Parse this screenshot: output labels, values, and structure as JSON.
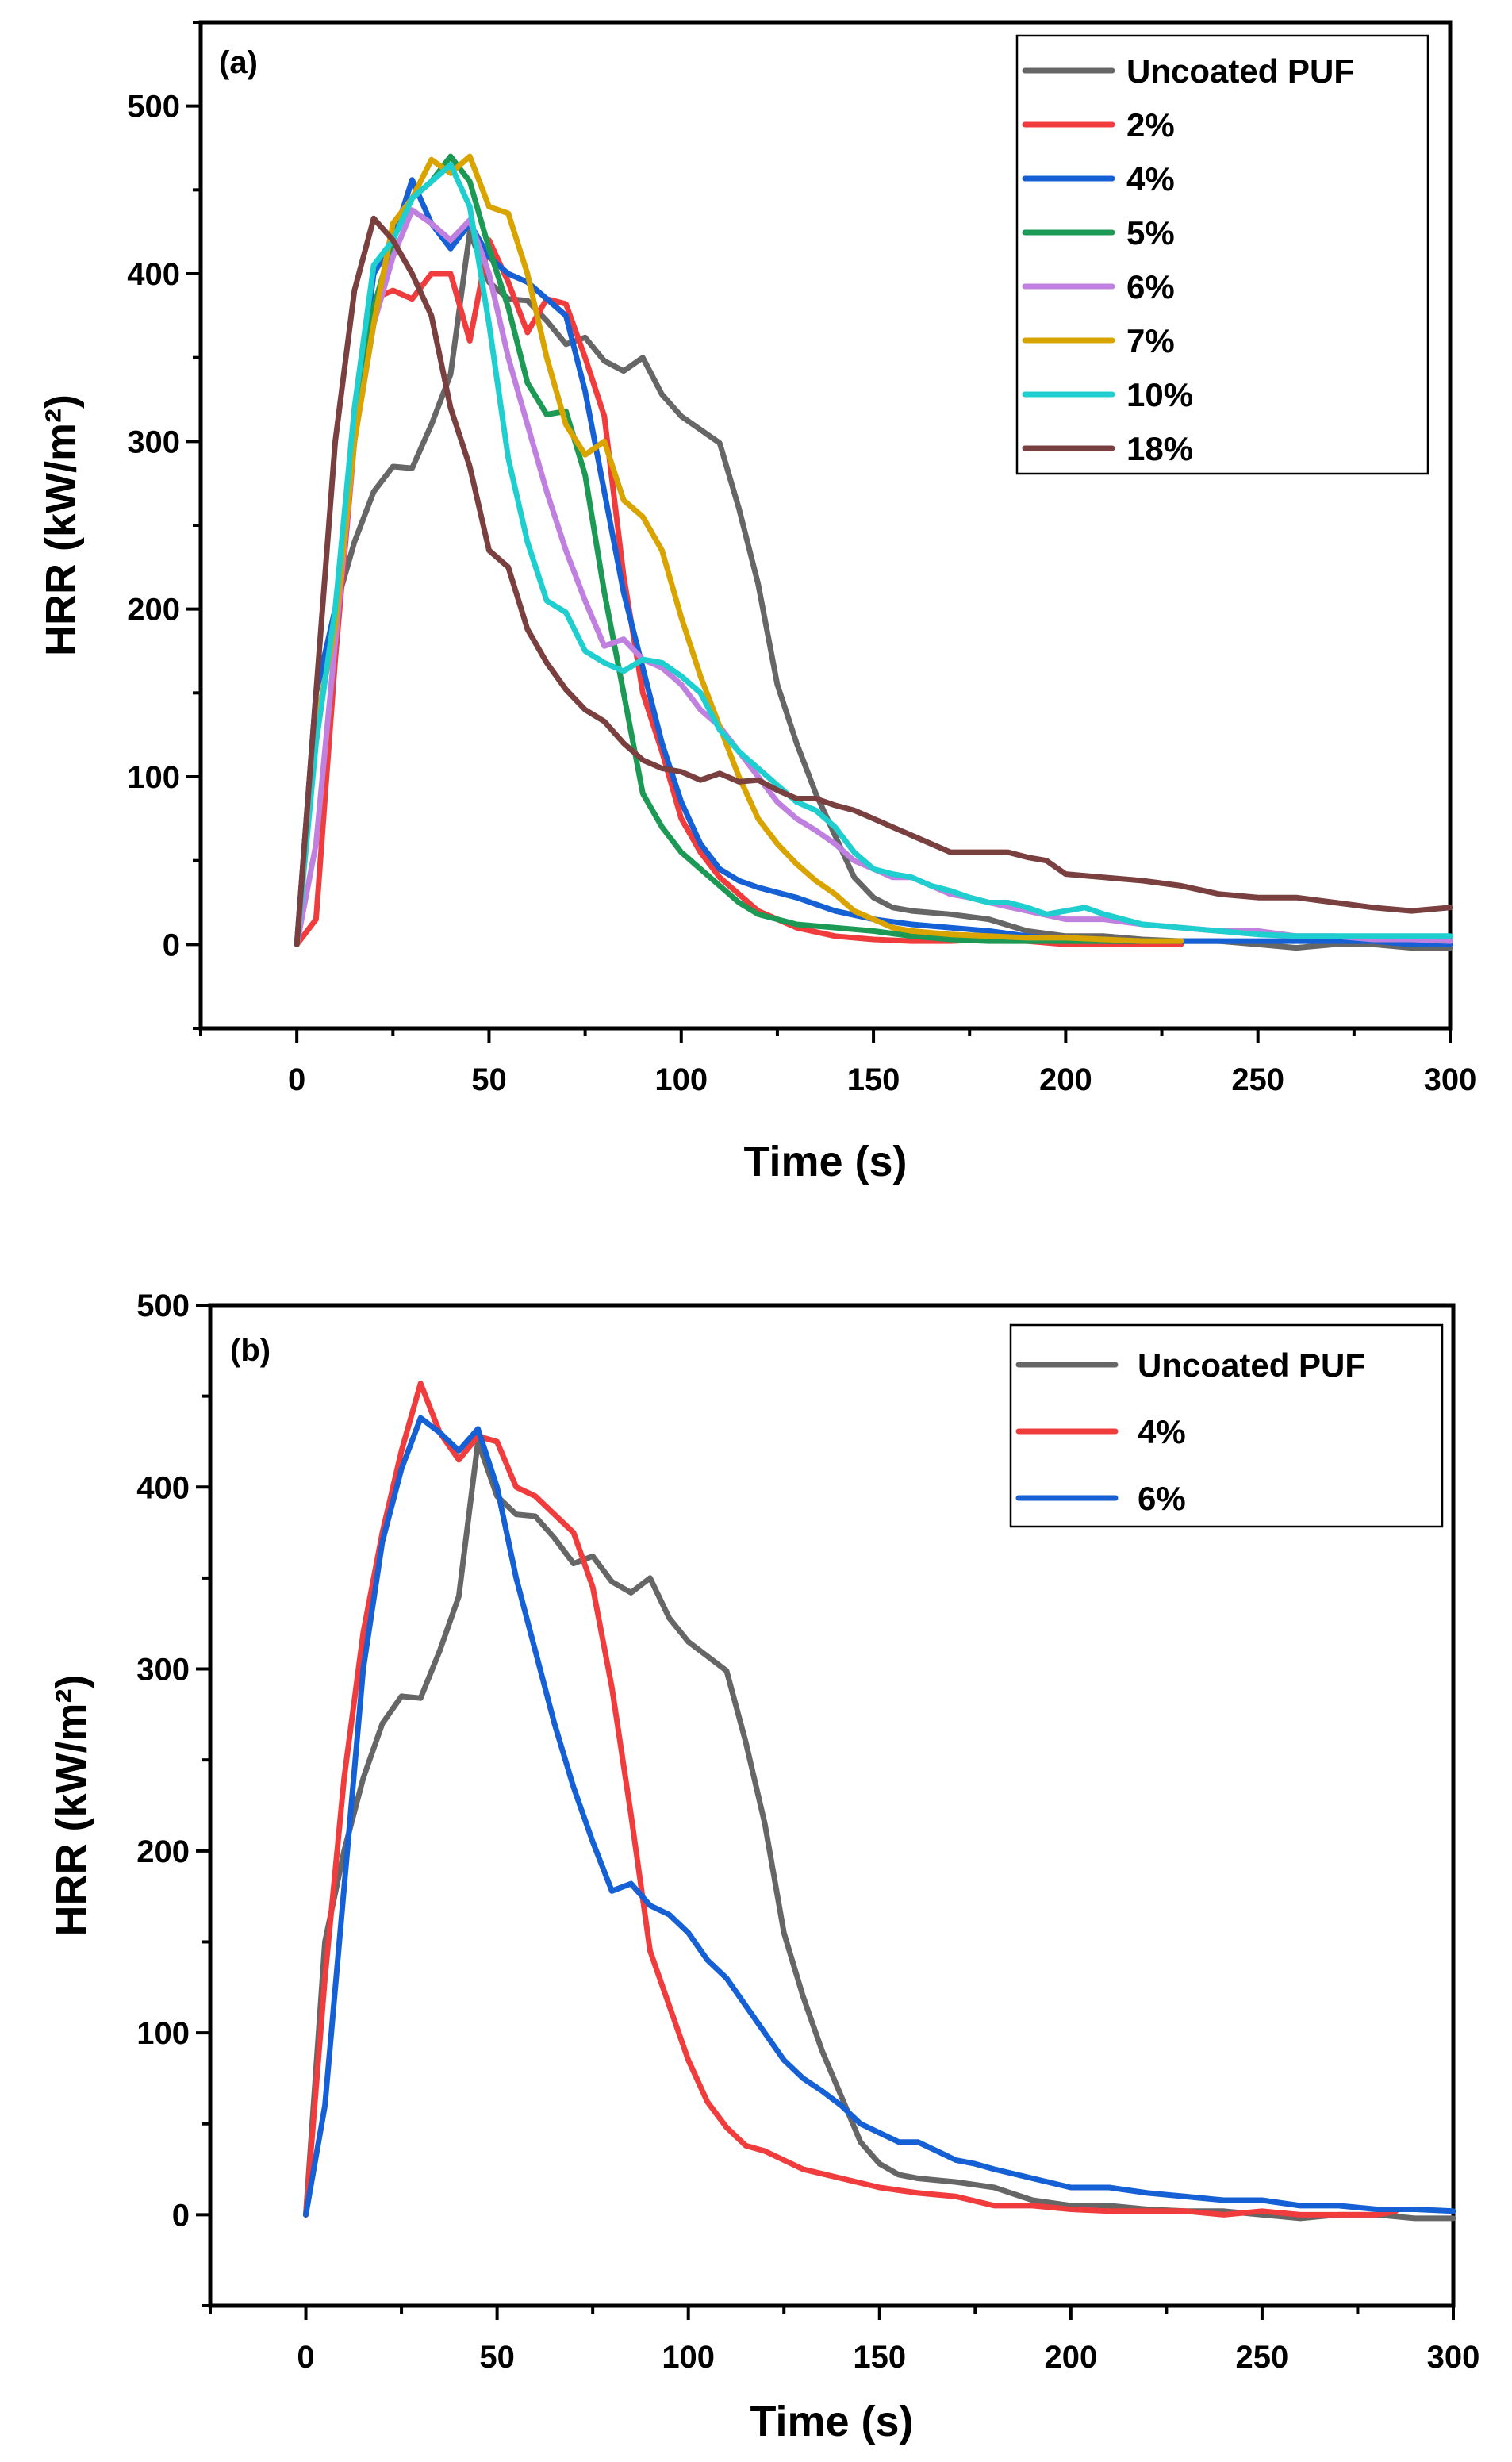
{
  "chart_data": [
    {
      "type": "line",
      "panel_label": "(a)",
      "xlabel": "Time (s)",
      "ylabel": "HRR (kW/m²)",
      "xlim": [
        -25,
        300
      ],
      "ylim": [
        -50,
        550
      ],
      "x_ticks": [
        0,
        50,
        100,
        150,
        200,
        250,
        300
      ],
      "y_ticks": [
        0,
        100,
        200,
        300,
        400,
        500
      ],
      "legend_position": "top-right",
      "series": [
        {
          "name": "Uncoated PUF",
          "color": "#666666",
          "x": [
            0,
            5,
            10,
            15,
            20,
            25,
            30,
            35,
            40,
            45,
            50,
            55,
            60,
            65,
            70,
            75,
            80,
            85,
            90,
            95,
            100,
            105,
            110,
            115,
            120,
            125,
            130,
            135,
            140,
            145,
            150,
            155,
            160,
            170,
            180,
            190,
            200,
            210,
            220,
            230,
            240,
            250,
            260,
            270,
            280,
            290,
            300
          ],
          "y": [
            0,
            150,
            200,
            240,
            270,
            285,
            284,
            310,
            340,
            425,
            395,
            385,
            384,
            372,
            358,
            362,
            348,
            342,
            350,
            328,
            315,
            307,
            299,
            260,
            215,
            155,
            120,
            90,
            65,
            40,
            28,
            22,
            20,
            18,
            15,
            8,
            5,
            5,
            3,
            2,
            2,
            0,
            -2,
            0,
            0,
            -2,
            -2
          ]
        },
        {
          "name": "2%",
          "color": "#f03c3c",
          "x": [
            0,
            5,
            10,
            15,
            20,
            25,
            30,
            35,
            40,
            45,
            50,
            55,
            60,
            65,
            70,
            75,
            80,
            85,
            90,
            95,
            100,
            105,
            110,
            120,
            130,
            140,
            150,
            160,
            170,
            180,
            190,
            200,
            210,
            220,
            230
          ],
          "y": [
            0,
            15,
            170,
            300,
            385,
            390,
            385,
            400,
            400,
            360,
            420,
            395,
            365,
            385,
            382,
            350,
            315,
            220,
            150,
            115,
            75,
            55,
            40,
            20,
            10,
            5,
            3,
            2,
            2,
            3,
            2,
            0,
            0,
            0,
            0
          ]
        },
        {
          "name": "4%",
          "color": "#1660d6",
          "x": [
            0,
            5,
            10,
            15,
            20,
            25,
            30,
            35,
            40,
            45,
            50,
            55,
            60,
            65,
            70,
            75,
            80,
            85,
            90,
            95,
            100,
            105,
            110,
            115,
            120,
            130,
            140,
            150,
            160,
            170,
            180,
            190,
            200,
            210,
            220,
            230,
            240,
            250,
            260,
            270,
            280,
            290,
            300
          ],
          "y": [
            0,
            150,
            200,
            310,
            400,
            420,
            456,
            430,
            415,
            430,
            410,
            400,
            395,
            385,
            375,
            330,
            270,
            210,
            165,
            120,
            85,
            60,
            45,
            38,
            34,
            28,
            20,
            15,
            12,
            10,
            8,
            5,
            3,
            2,
            2,
            2,
            2,
            2,
            2,
            2,
            2,
            0,
            0
          ]
        },
        {
          "name": "5%",
          "color": "#1c9a55",
          "x": [
            0,
            5,
            10,
            15,
            20,
            25,
            30,
            35,
            40,
            45,
            50,
            55,
            60,
            65,
            70,
            75,
            80,
            85,
            90,
            95,
            100,
            105,
            110,
            115,
            120,
            130,
            140,
            150,
            160,
            170,
            180,
            190,
            200,
            210,
            220,
            230
          ],
          "y": [
            0,
            130,
            190,
            300,
            380,
            420,
            445,
            455,
            470,
            455,
            415,
            380,
            335,
            316,
            318,
            280,
            210,
            150,
            90,
            70,
            55,
            45,
            35,
            25,
            18,
            12,
            10,
            8,
            5,
            3,
            2,
            2,
            2,
            2,
            2,
            2
          ]
        },
        {
          "name": "6%",
          "color": "#c080e0",
          "x": [
            0,
            5,
            10,
            15,
            20,
            25,
            30,
            35,
            40,
            45,
            50,
            55,
            60,
            65,
            70,
            75,
            80,
            85,
            90,
            95,
            100,
            105,
            110,
            115,
            120,
            125,
            130,
            135,
            140,
            145,
            150,
            155,
            160,
            165,
            170,
            175,
            180,
            190,
            200,
            210,
            220,
            230,
            240,
            250,
            260,
            270,
            280,
            290,
            300
          ],
          "y": [
            0,
            60,
            180,
            300,
            370,
            410,
            438,
            430,
            420,
            432,
            400,
            350,
            310,
            270,
            235,
            205,
            178,
            182,
            170,
            165,
            155,
            140,
            130,
            115,
            100,
            85,
            75,
            68,
            60,
            50,
            45,
            40,
            40,
            35,
            30,
            28,
            25,
            20,
            15,
            15,
            12,
            10,
            8,
            8,
            5,
            5,
            3,
            3,
            2
          ]
        },
        {
          "name": "7%",
          "color": "#d9a300",
          "x": [
            0,
            5,
            10,
            15,
            20,
            25,
            30,
            35,
            40,
            45,
            50,
            55,
            60,
            65,
            70,
            75,
            80,
            85,
            90,
            95,
            100,
            105,
            110,
            115,
            120,
            125,
            130,
            135,
            140,
            145,
            150,
            155,
            160,
            170,
            180,
            190,
            200,
            210,
            220,
            230
          ],
          "y": [
            0,
            130,
            190,
            300,
            370,
            430,
            445,
            468,
            460,
            470,
            440,
            436,
            400,
            350,
            310,
            292,
            300,
            265,
            255,
            235,
            195,
            160,
            130,
            100,
            75,
            60,
            48,
            38,
            30,
            20,
            15,
            10,
            8,
            6,
            5,
            4,
            4,
            3,
            2,
            2
          ]
        },
        {
          "name": "10%",
          "color": "#1fcfcf",
          "x": [
            0,
            5,
            10,
            15,
            20,
            25,
            30,
            35,
            40,
            45,
            50,
            55,
            60,
            65,
            70,
            75,
            80,
            85,
            90,
            95,
            100,
            105,
            110,
            115,
            120,
            125,
            130,
            135,
            140,
            145,
            150,
            155,
            160,
            165,
            170,
            175,
            180,
            185,
            190,
            195,
            200,
            205,
            210,
            215,
            220,
            230,
            240,
            250,
            260,
            270,
            280,
            290,
            300
          ],
          "y": [
            0,
            120,
            200,
            320,
            405,
            420,
            445,
            455,
            465,
            440,
            370,
            290,
            240,
            205,
            198,
            175,
            168,
            163,
            170,
            168,
            160,
            150,
            128,
            115,
            105,
            95,
            85,
            80,
            70,
            55,
            45,
            42,
            40,
            35,
            32,
            28,
            25,
            25,
            22,
            18,
            20,
            22,
            18,
            15,
            12,
            10,
            8,
            6,
            5,
            5,
            5,
            5,
            5
          ]
        },
        {
          "name": "18%",
          "color": "#7a4040",
          "x": [
            0,
            5,
            10,
            15,
            20,
            25,
            30,
            35,
            40,
            45,
            50,
            55,
            60,
            65,
            70,
            75,
            80,
            85,
            90,
            95,
            100,
            105,
            110,
            115,
            120,
            125,
            130,
            135,
            140,
            145,
            150,
            155,
            160,
            165,
            170,
            175,
            180,
            185,
            190,
            195,
            200,
            210,
            220,
            230,
            240,
            250,
            260,
            270,
            280,
            290,
            300
          ],
          "y": [
            0,
            150,
            300,
            390,
            433,
            420,
            400,
            375,
            320,
            285,
            235,
            225,
            188,
            168,
            152,
            140,
            133,
            120,
            110,
            105,
            103,
            98,
            102,
            97,
            98,
            92,
            87,
            87,
            83,
            80,
            75,
            70,
            65,
            60,
            55,
            55,
            55,
            55,
            52,
            50,
            42,
            40,
            38,
            35,
            30,
            28,
            28,
            25,
            22,
            20,
            22
          ]
        }
      ]
    },
    {
      "type": "line",
      "panel_label": "(b)",
      "xlabel": "Time (s)",
      "ylabel": "HRR (kW/m²)",
      "xlim": [
        -25,
        300
      ],
      "ylim": [
        -50,
        500
      ],
      "x_ticks": [
        0,
        50,
        100,
        150,
        200,
        250,
        300
      ],
      "y_ticks": [
        0,
        100,
        200,
        300,
        400,
        500
      ],
      "legend_position": "top-right",
      "series": [
        {
          "name": "Uncoated PUF",
          "color": "#666666",
          "x": [
            0,
            5,
            10,
            15,
            20,
            25,
            30,
            35,
            40,
            45,
            50,
            55,
            60,
            65,
            70,
            75,
            80,
            85,
            90,
            95,
            100,
            105,
            110,
            115,
            120,
            125,
            130,
            135,
            140,
            145,
            150,
            155,
            160,
            170,
            180,
            190,
            200,
            210,
            220,
            230,
            240,
            250,
            260,
            270,
            280,
            290,
            300
          ],
          "y": [
            0,
            150,
            200,
            240,
            270,
            285,
            284,
            310,
            340,
            425,
            395,
            385,
            384,
            372,
            358,
            362,
            348,
            342,
            350,
            328,
            315,
            307,
            299,
            260,
            215,
            155,
            120,
            90,
            65,
            40,
            28,
            22,
            20,
            18,
            15,
            8,
            5,
            5,
            3,
            2,
            2,
            0,
            -2,
            0,
            0,
            -2,
            -2
          ]
        },
        {
          "name": "4%",
          "color": "#f03c3c",
          "x": [
            0,
            5,
            10,
            15,
            20,
            25,
            30,
            35,
            40,
            45,
            50,
            55,
            60,
            65,
            70,
            75,
            80,
            85,
            90,
            95,
            100,
            105,
            110,
            115,
            120,
            130,
            140,
            150,
            160,
            170,
            180,
            190,
            200,
            210,
            220,
            230,
            240,
            250,
            260,
            270,
            280,
            285
          ],
          "y": [
            0,
            130,
            240,
            320,
            375,
            420,
            457,
            430,
            415,
            428,
            425,
            400,
            395,
            385,
            375,
            345,
            290,
            220,
            145,
            115,
            85,
            62,
            48,
            38,
            35,
            25,
            20,
            15,
            12,
            10,
            5,
            5,
            3,
            2,
            2,
            2,
            0,
            2,
            0,
            0,
            0,
            2
          ]
        },
        {
          "name": "6%",
          "color": "#1660d6",
          "x": [
            0,
            5,
            10,
            15,
            20,
            25,
            30,
            35,
            40,
            45,
            50,
            55,
            60,
            65,
            70,
            75,
            80,
            85,
            90,
            95,
            100,
            105,
            110,
            115,
            120,
            125,
            130,
            135,
            140,
            145,
            150,
            155,
            160,
            165,
            170,
            175,
            180,
            190,
            200,
            210,
            220,
            230,
            240,
            250,
            260,
            270,
            280,
            290,
            300
          ],
          "y": [
            0,
            60,
            180,
            300,
            370,
            410,
            438,
            430,
            420,
            432,
            400,
            350,
            310,
            270,
            235,
            205,
            178,
            182,
            170,
            165,
            155,
            140,
            130,
            115,
            100,
            85,
            75,
            68,
            60,
            50,
            45,
            40,
            40,
            35,
            30,
            28,
            25,
            20,
            15,
            15,
            12,
            10,
            8,
            8,
            5,
            5,
            3,
            3,
            2
          ]
        }
      ]
    }
  ]
}
